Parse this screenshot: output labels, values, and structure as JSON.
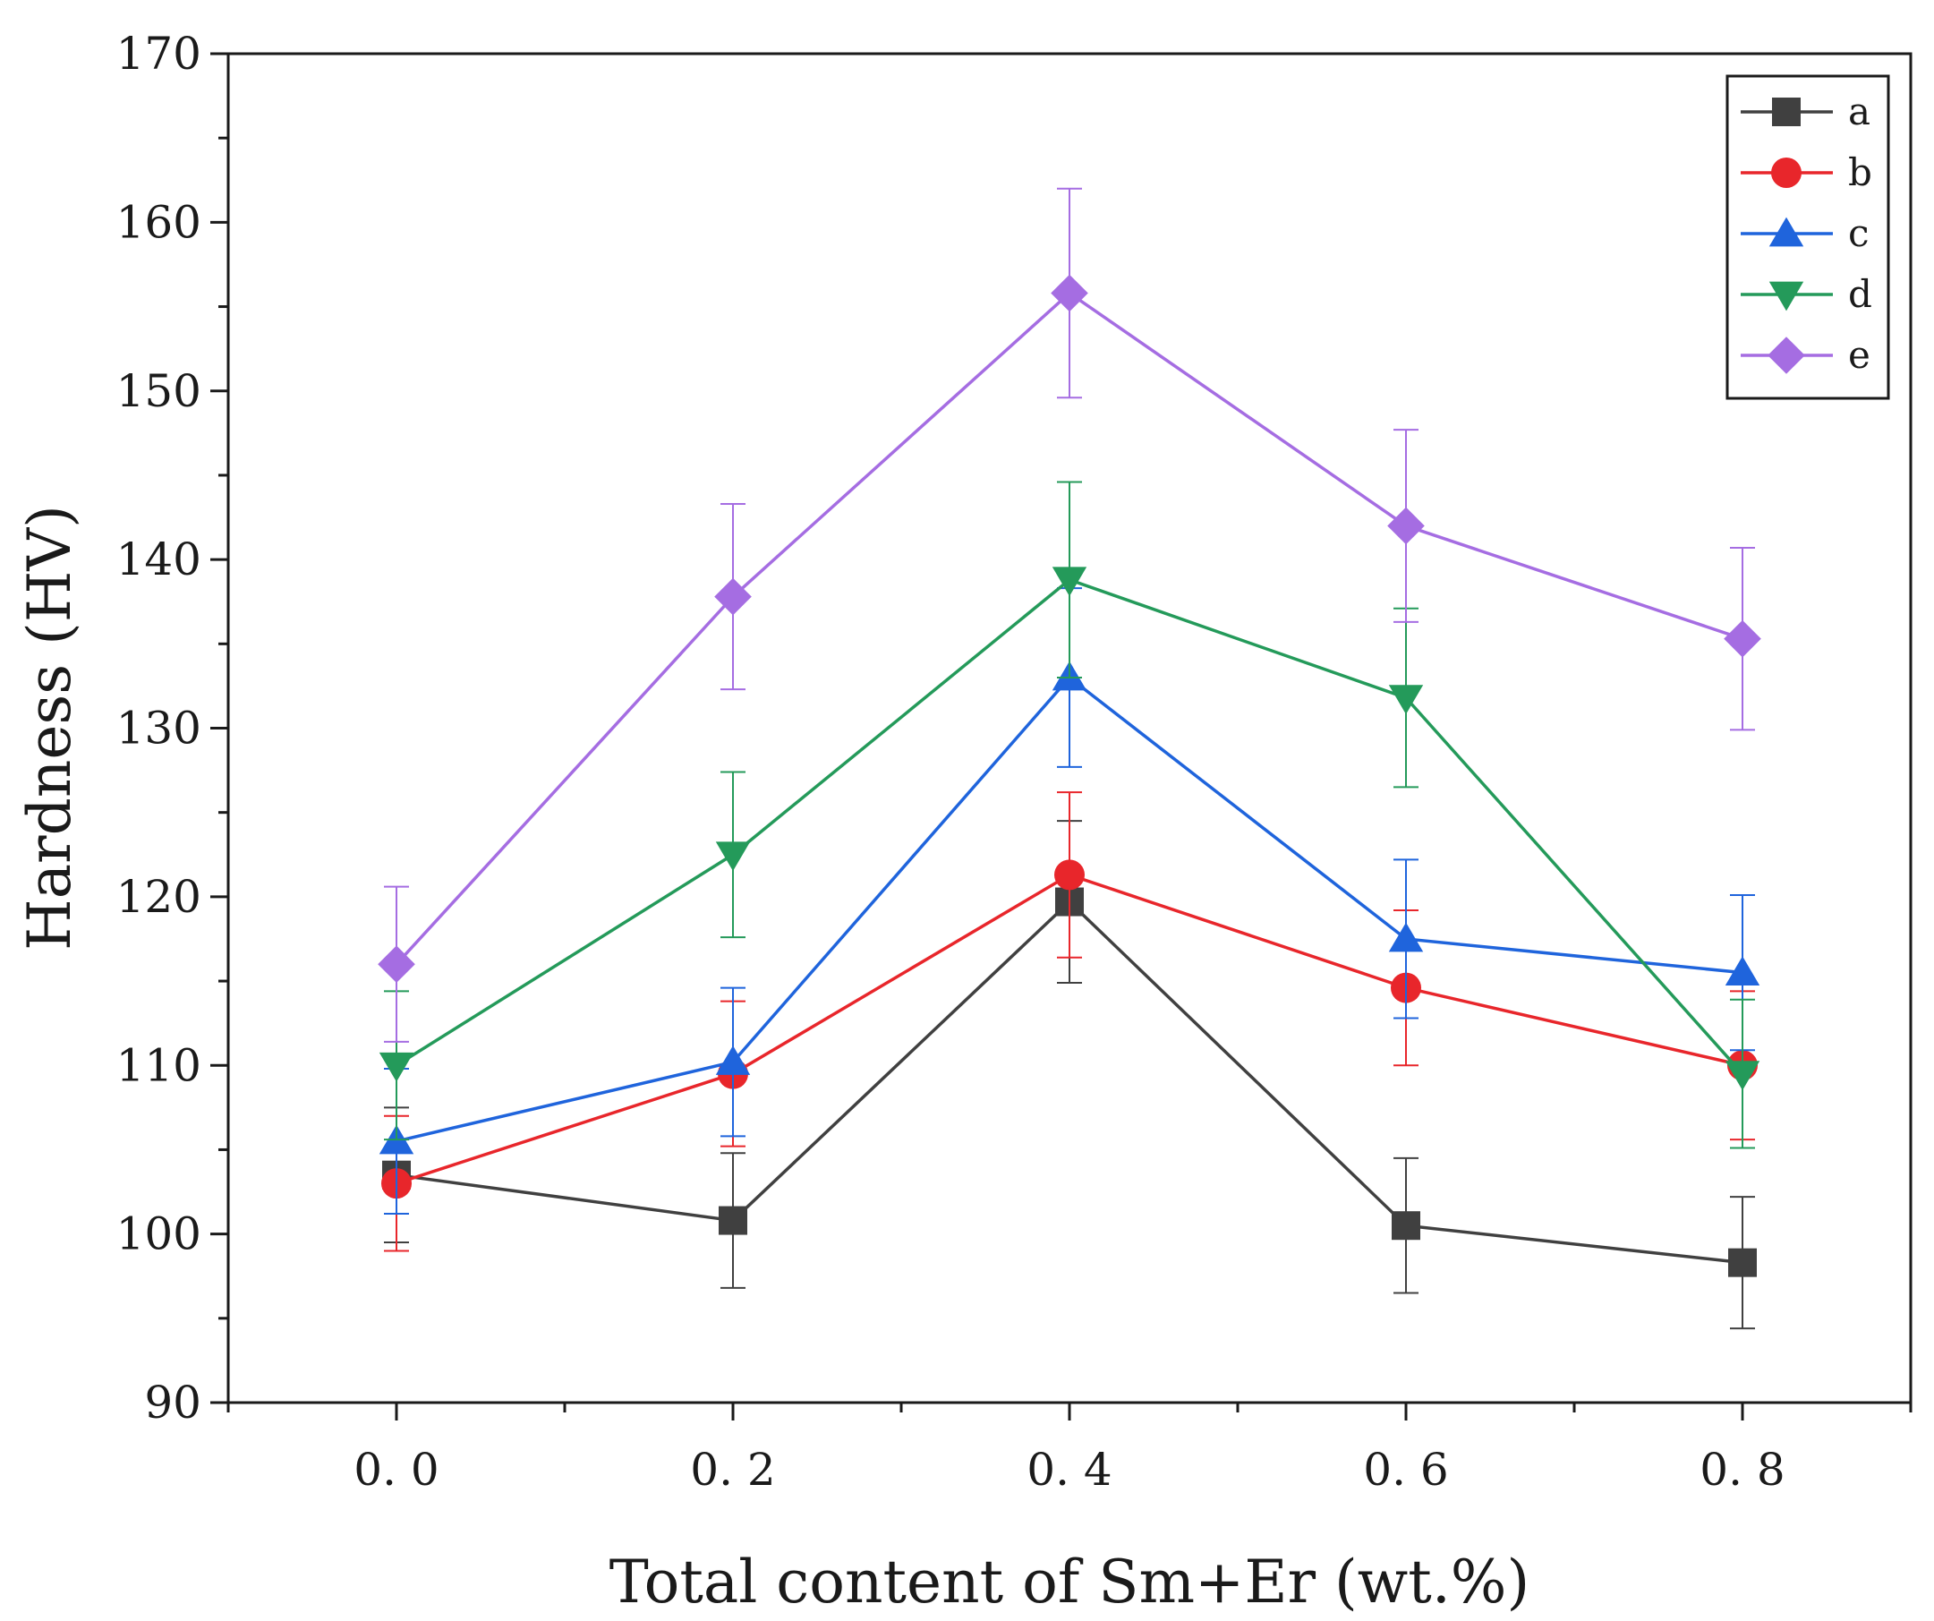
{
  "chart_data": {
    "type": "line",
    "xlabel": "Total content of Sm+Er (wt.%)",
    "ylabel": "Hardness (HV)",
    "xlim": [
      -0.1,
      0.9
    ],
    "ylim": [
      90,
      170
    ],
    "x_ticks": [
      0.0,
      0.2,
      0.4,
      0.6,
      0.8
    ],
    "x_tick_labels": [
      "0. 0",
      "0. 2",
      "0. 4",
      "0. 6",
      "0. 8"
    ],
    "y_ticks": [
      90,
      100,
      110,
      120,
      130,
      140,
      150,
      160,
      170
    ],
    "y_tick_labels": [
      "90",
      "100",
      "110",
      "120",
      "130",
      "140",
      "150",
      "160",
      "170"
    ],
    "grid": false,
    "legend_position": "top-right",
    "x": [
      0.0,
      0.2,
      0.4,
      0.6,
      0.8
    ],
    "series": [
      {
        "name": "a",
        "color": "#404040",
        "marker": "square",
        "values": [
          103.5,
          100.8,
          119.7,
          100.5,
          98.3
        ],
        "errors": [
          4.0,
          4.0,
          4.8,
          4.0,
          3.9
        ]
      },
      {
        "name": "b",
        "color": "#e8262b",
        "marker": "circle",
        "values": [
          103.0,
          109.5,
          121.3,
          114.6,
          110.0
        ],
        "errors": [
          4.0,
          4.3,
          4.9,
          4.6,
          4.4
        ]
      },
      {
        "name": "c",
        "color": "#1f64dc",
        "marker": "triangle-up",
        "values": [
          105.5,
          110.2,
          133.0,
          117.5,
          115.5
        ],
        "errors": [
          4.3,
          4.4,
          5.3,
          4.7,
          4.6
        ]
      },
      {
        "name": "d",
        "color": "#249a5a",
        "marker": "triangle-down",
        "values": [
          110.0,
          122.5,
          138.8,
          131.8,
          109.5
        ],
        "errors": [
          4.4,
          4.9,
          5.8,
          5.3,
          4.4
        ]
      },
      {
        "name": "e",
        "color": "#a56de2",
        "marker": "diamond",
        "values": [
          116.0,
          137.8,
          155.8,
          142.0,
          135.3
        ],
        "errors": [
          4.6,
          5.5,
          6.2,
          5.7,
          5.4
        ]
      }
    ]
  }
}
